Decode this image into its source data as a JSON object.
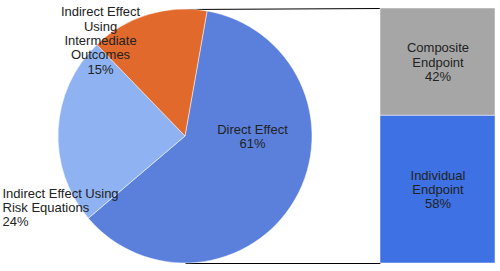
{
  "chart_data": [
    {
      "type": "pie",
      "categories": [
        "Direct Effect",
        "Indirect Effect Using Risk Equations",
        "Indirect Effect Using Intermediate Outcomes"
      ],
      "values": [
        61,
        24,
        15
      ],
      "value_labels": [
        "61%",
        "24%",
        "15%"
      ],
      "colors": [
        "#5b80dc",
        "#8fb3f2",
        "#e0692b"
      ],
      "data_labels": true
    },
    {
      "type": "bar",
      "stacked": true,
      "categories": [
        "Composite Endpoint",
        "Individual Endpoint"
      ],
      "values": [
        42,
        58
      ],
      "value_labels": [
        "42%",
        "58%"
      ],
      "colors": [
        "#a6a6a6",
        "#3e71e3"
      ],
      "data_labels": true,
      "tick_labels": false
    }
  ]
}
